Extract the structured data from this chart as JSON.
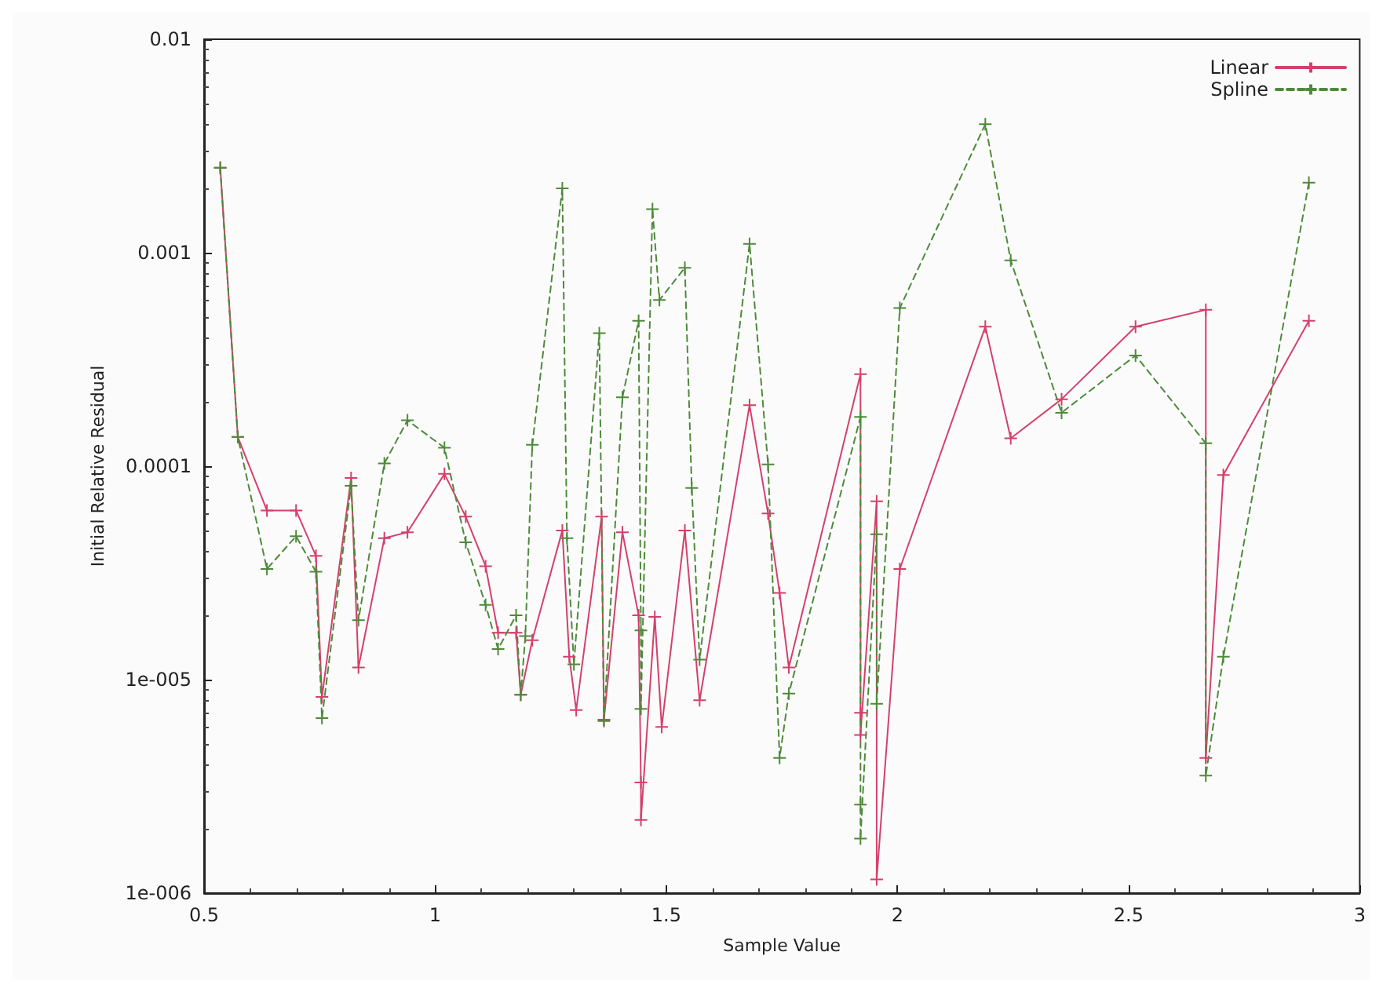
{
  "chart_data": {
    "type": "line",
    "xlabel": "Sample Value",
    "ylabel": "Initial Relative Residual",
    "xlim": [
      0.5,
      3
    ],
    "xticks": [
      0.5,
      1,
      1.5,
      2,
      2.5,
      3
    ],
    "ylim": [
      1e-06,
      0.01
    ],
    "yticks": [
      {
        "value": 1e-06,
        "label": "1e-006"
      },
      {
        "value": 1e-05,
        "label": "1e-005"
      },
      {
        "value": 0.0001,
        "label": "0.0001"
      },
      {
        "value": 0.001,
        "label": "0.001"
      },
      {
        "value": 0.01,
        "label": "0.01"
      }
    ],
    "log": "y",
    "grid": false,
    "legend": "top right",
    "series": [
      {
        "name": "Linear",
        "color": "#d4406c",
        "marker": "cross",
        "line_style": "solid",
        "x": [
          0.535,
          0.573,
          0.636,
          0.699,
          0.742,
          0.755,
          0.818,
          0.834,
          0.89,
          0.94,
          1.02,
          1.066,
          1.109,
          1.136,
          1.175,
          1.185,
          1.21,
          1.275,
          1.29,
          1.305,
          1.36,
          1.365,
          1.405,
          1.44,
          1.445,
          1.445,
          1.475,
          1.49,
          1.54,
          1.572,
          1.68,
          1.72,
          1.745,
          1.765,
          1.92,
          1.92,
          1.92,
          1.955,
          1.955,
          2.005,
          2.19,
          2.245,
          2.355,
          2.515,
          2.667,
          2.667,
          2.705,
          2.89
        ],
        "values": [
          0.0025,
          0.000137,
          6.2e-05,
          6.2e-05,
          3.8e-05,
          8.3e-06,
          8.8e-05,
          1.14e-05,
          4.6e-05,
          4.9e-05,
          9.2e-05,
          5.8e-05,
          3.4e-05,
          1.66e-05,
          1.66e-05,
          8.5e-06,
          1.53e-05,
          5e-05,
          1.28e-05,
          7.2e-06,
          5.8e-05,
          6.5e-06,
          4.9e-05,
          2e-05,
          3.3e-06,
          2.2e-06,
          1.97e-05,
          6e-06,
          5e-05,
          8e-06,
          0.000193,
          6e-05,
          2.55e-05,
          1.14e-05,
          0.00027,
          7e-06,
          5.5e-06,
          6.85e-05,
          1.16e-06,
          3.3e-05,
          0.00045,
          0.000135,
          0.000206,
          0.00045,
          0.00054,
          4.3e-06,
          9.1e-05,
          0.00048
        ]
      },
      {
        "name": "Spline",
        "color": "#4e8a3a",
        "marker": "cross",
        "line_style": "dashed",
        "x": [
          0.535,
          0.573,
          0.636,
          0.699,
          0.742,
          0.755,
          0.818,
          0.834,
          0.89,
          0.94,
          1.02,
          1.066,
          1.109,
          1.136,
          1.175,
          1.185,
          1.195,
          1.21,
          1.275,
          1.285,
          1.3,
          1.355,
          1.365,
          1.405,
          1.44,
          1.445,
          1.445,
          1.47,
          1.485,
          1.54,
          1.555,
          1.572,
          1.68,
          1.72,
          1.745,
          1.765,
          1.92,
          1.92,
          1.92,
          1.955,
          1.955,
          2.005,
          2.19,
          2.245,
          2.355,
          2.515,
          2.667,
          2.667,
          2.705,
          2.89
        ],
        "values": [
          0.0025,
          0.000137,
          3.3e-05,
          4.7e-05,
          3.2e-05,
          6.6e-06,
          8.1e-05,
          1.9e-05,
          0.000103,
          0.000164,
          0.000122,
          4.4e-05,
          2.24e-05,
          1.39e-05,
          2e-05,
          8.5e-06,
          1.6e-05,
          0.000126,
          0.002,
          4.6e-05,
          1.18e-05,
          0.00042,
          6.4e-06,
          0.00021,
          0.00048,
          1.7e-05,
          7.3e-06,
          0.0016,
          0.0006,
          0.00085,
          7.9e-05,
          1.24e-05,
          0.0011,
          0.000102,
          4.3e-06,
          8.6e-06,
          0.00017,
          2.6e-06,
          1.8e-06,
          4.8e-05,
          7.7e-06,
          0.00055,
          0.004,
          0.00092,
          0.000178,
          0.00033,
          0.000128,
          3.55e-06,
          1.28e-05,
          0.00213
        ]
      }
    ]
  }
}
